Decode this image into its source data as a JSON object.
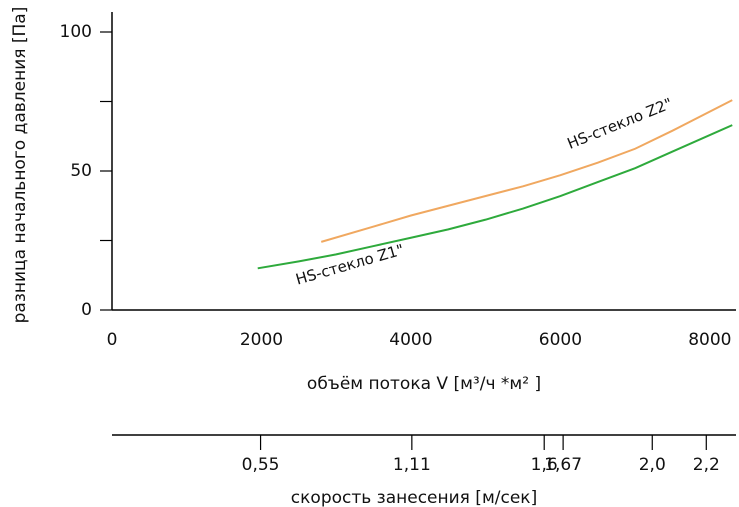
{
  "chart_data": {
    "type": "line",
    "xlabel": "объём потока V [м³/ч *м² ]",
    "ylabel": "разница начального давления  [Па]",
    "x2label": "скорость занесения  [м/сек]",
    "xlim": [
      0,
      8350
    ],
    "ylim": [
      0,
      100
    ],
    "xticks": [
      0,
      2000,
      4000,
      6000,
      8000
    ],
    "yticks": [
      0,
      50,
      100
    ],
    "yminor_ticks": [
      25,
      75
    ],
    "x2lim": [
      0,
      2.31
    ],
    "x2ticks": [
      {
        "value": 0.55,
        "label": "0,55"
      },
      {
        "value": 1.11,
        "label": "1,11"
      },
      {
        "value": 1.6,
        "label": "1,6"
      },
      {
        "value": 1.67,
        "label": "1,67"
      },
      {
        "value": 2.0,
        "label": "2,0"
      },
      {
        "value": 2.2,
        "label": "2,2"
      }
    ],
    "series": [
      {
        "name": "HS-стекло Z1\"",
        "color": "#2eaa3c",
        "x": [
          1950,
          2500,
          3000,
          3500,
          4000,
          4500,
          5000,
          5500,
          6000,
          6500,
          7000,
          7500,
          8300
        ],
        "values": [
          15,
          17.5,
          20,
          23,
          26,
          29,
          32.5,
          36.5,
          41,
          46,
          51,
          57,
          66.5
        ]
      },
      {
        "name": "HS-стекло Z2\"",
        "color": "#f0a860",
        "x": [
          2800,
          3500,
          4000,
          4500,
          5000,
          5500,
          6000,
          6500,
          7000,
          7500,
          8300
        ],
        "values": [
          24.5,
          30,
          34,
          37.5,
          41,
          44.5,
          48.5,
          53,
          58,
          64.5,
          75.5
        ]
      }
    ]
  }
}
